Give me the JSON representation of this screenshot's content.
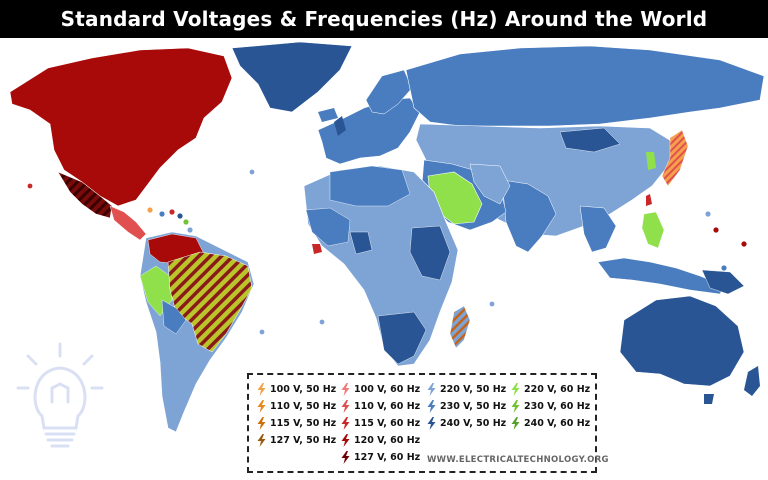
{
  "title": "Standard Voltages & Frequencies (Hz) Around the World",
  "colors": {
    "v100_50": "#f5a04a",
    "v110_50": "#e8871a",
    "v115_50": "#cf6e0a",
    "v127_50": "#9a5a12",
    "v100_60": "#f07b7b",
    "v110_60": "#e05050",
    "v115_60": "#c82828",
    "v120_60": "#a80a0a",
    "v127_60": "#6e0000",
    "v220_50": "#7ea4d6",
    "v230_50": "#4a7dbf",
    "v240_50": "#2a5594",
    "v220_60": "#8fe04a",
    "v230_60": "#6fc232",
    "v240_60": "#54a02a"
  },
  "legend": {
    "col1": [
      {
        "label": "100 V,  50 Hz",
        "color": "#f5a04a"
      },
      {
        "label": "110 V,  50 Hz",
        "color": "#e8871a"
      },
      {
        "label": "115 V,  50 Hz",
        "color": "#cf6e0a"
      },
      {
        "label": "127 V,  50 Hz",
        "color": "#9a5a12"
      }
    ],
    "col2": [
      {
        "label": "100 V,  60 Hz",
        "color": "#f07b7b"
      },
      {
        "label": "110 V,  60 Hz",
        "color": "#e05050"
      },
      {
        "label": "115 V,  60 Hz",
        "color": "#c82828"
      },
      {
        "label": "120 V,  60 Hz",
        "color": "#a80a0a"
      },
      {
        "label": "127 V,  60 Hz",
        "color": "#6e0000"
      }
    ],
    "col3": [
      {
        "label": "220 V,  50 Hz",
        "color": "#7ea4d6"
      },
      {
        "label": "230 V,  50 Hz",
        "color": "#4a7dbf"
      },
      {
        "label": "240 V,  50 Hz",
        "color": "#2a5594"
      }
    ],
    "col4": [
      {
        "label": "220 V,  60 Hz",
        "color": "#8fe04a"
      },
      {
        "label": "230 V,  60 Hz",
        "color": "#6fc232"
      },
      {
        "label": "240 V,  60 Hz",
        "color": "#54a02a"
      }
    ]
  },
  "footer": "WWW.ELECTRICALTECHNOLOGY.ORG",
  "icons": [
    "lightning-bolt-icon",
    "light-bulb-icon"
  ]
}
